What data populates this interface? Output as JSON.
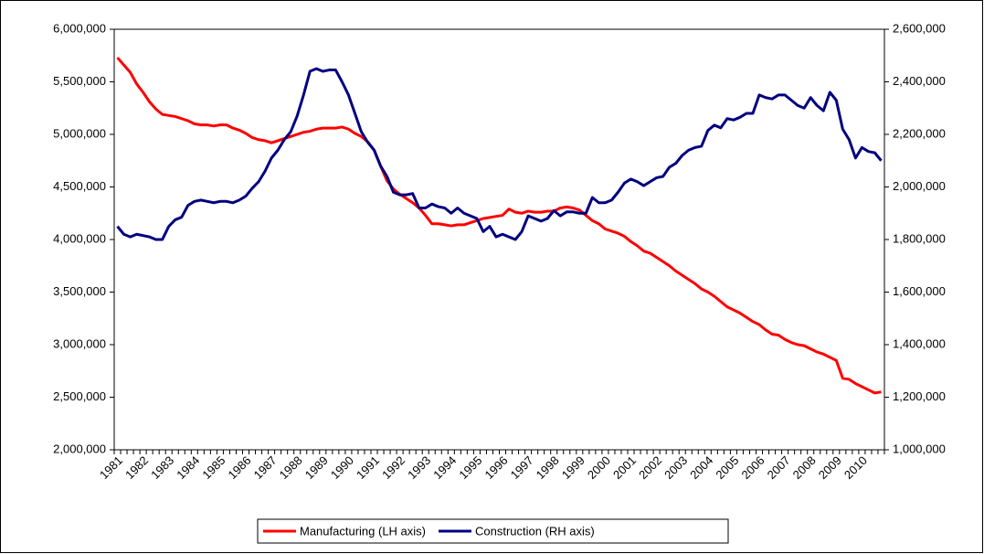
{
  "chart_data": {
    "type": "line",
    "categories": [
      "1981",
      null,
      null,
      null,
      "1982",
      null,
      null,
      null,
      "1983",
      null,
      null,
      null,
      "1984",
      null,
      null,
      null,
      "1985",
      null,
      null,
      null,
      "1986",
      null,
      null,
      null,
      "1987",
      null,
      null,
      null,
      "1988",
      null,
      null,
      null,
      "1989",
      null,
      null,
      null,
      "1990",
      null,
      null,
      null,
      "1991",
      null,
      null,
      null,
      "1992",
      null,
      null,
      null,
      "1993",
      null,
      null,
      null,
      "1994",
      null,
      null,
      null,
      "1995",
      null,
      null,
      null,
      "1996",
      null,
      null,
      null,
      "1997",
      null,
      null,
      null,
      "1998",
      null,
      null,
      null,
      "1999",
      null,
      null,
      null,
      "2000",
      null,
      null,
      null,
      "2001",
      null,
      null,
      null,
      "2002",
      null,
      null,
      null,
      "2003",
      null,
      null,
      null,
      "2004",
      null,
      null,
      null,
      "2005",
      null,
      null,
      null,
      "2006",
      null,
      null,
      null,
      "2007",
      null,
      null,
      null,
      "2008",
      null,
      null,
      null,
      "2009",
      null,
      null,
      null,
      "2010",
      null,
      null,
      null
    ],
    "series": [
      {
        "name": "Manufacturing (LH axis)",
        "color": "#ff0000",
        "values": [
          5730000,
          5660000,
          5590000,
          5480000,
          5400000,
          5310000,
          5240000,
          5190000,
          5180000,
          5170000,
          5150000,
          5130000,
          5100000,
          5090000,
          5090000,
          5080000,
          5090000,
          5090000,
          5060000,
          5040000,
          5010000,
          4970000,
          4950000,
          4940000,
          4920000,
          4940000,
          4960000,
          4980000,
          5000000,
          5020000,
          5030000,
          5050000,
          5060000,
          5060000,
          5060000,
          5070000,
          5050000,
          5010000,
          4980000,
          4930000,
          4850000,
          4700000,
          4560000,
          4480000,
          4430000,
          4390000,
          4350000,
          4300000,
          4230000,
          4150000,
          4150000,
          4140000,
          4130000,
          4140000,
          4140000,
          4160000,
          4180000,
          4200000,
          4210000,
          4220000,
          4230000,
          4290000,
          4260000,
          4250000,
          4270000,
          4260000,
          4260000,
          4270000,
          4270000,
          4300000,
          4310000,
          4300000,
          4280000,
          4230000,
          4180000,
          4150000,
          4100000,
          4080000,
          4060000,
          4030000,
          3980000,
          3940000,
          3890000,
          3870000,
          3830000,
          3790000,
          3750000,
          3700000,
          3660000,
          3620000,
          3580000,
          3530000,
          3500000,
          3460000,
          3410000,
          3360000,
          3330000,
          3300000,
          3260000,
          3220000,
          3190000,
          3140000,
          3100000,
          3090000,
          3050000,
          3020000,
          3000000,
          2990000,
          2960000,
          2930000,
          2910000,
          2880000,
          2850000,
          2680000,
          2670000,
          2630000,
          2600000,
          2570000,
          2540000,
          2550000
        ]
      },
      {
        "name": "Construction (RH axis)",
        "color": "#000080",
        "axis": "y2",
        "values": [
          1850000,
          1820000,
          1810000,
          1820000,
          1815000,
          1810000,
          1800000,
          1800000,
          1850000,
          1875000,
          1885000,
          1930000,
          1945000,
          1950000,
          1945000,
          1940000,
          1945000,
          1945000,
          1940000,
          1950000,
          1965000,
          1995000,
          2020000,
          2060000,
          2110000,
          2140000,
          2180000,
          2210000,
          2270000,
          2350000,
          2440000,
          2450000,
          2440000,
          2445000,
          2445000,
          2400000,
          2350000,
          2280000,
          2210000,
          2170000,
          2140000,
          2080000,
          2040000,
          1980000,
          1970000,
          1970000,
          1975000,
          1920000,
          1920000,
          1935000,
          1925000,
          1920000,
          1900000,
          1920000,
          1900000,
          1890000,
          1880000,
          1830000,
          1850000,
          1810000,
          1820000,
          1810000,
          1800000,
          1830000,
          1890000,
          1880000,
          1870000,
          1880000,
          1910000,
          1890000,
          1905000,
          1905000,
          1900000,
          1900000,
          1960000,
          1940000,
          1940000,
          1950000,
          1980000,
          2015000,
          2030000,
          2020000,
          2005000,
          2020000,
          2035000,
          2040000,
          2075000,
          2090000,
          2120000,
          2140000,
          2150000,
          2155000,
          2215000,
          2235000,
          2225000,
          2260000,
          2255000,
          2265000,
          2280000,
          2280000,
          2350000,
          2340000,
          2335000,
          2350000,
          2350000,
          2330000,
          2310000,
          2300000,
          2340000,
          2310000,
          2290000,
          2360000,
          2330000,
          2220000,
          2180000,
          2110000,
          2150000,
          2135000,
          2130000,
          2100000
        ]
      }
    ],
    "ylim": [
      2000000,
      6000000
    ],
    "yticks": [
      {
        "value": 2000000,
        "label": "2,000,000"
      },
      {
        "value": 2500000,
        "label": "2,500,000"
      },
      {
        "value": 3000000,
        "label": "3,000,000"
      },
      {
        "value": 3500000,
        "label": "3,500,000"
      },
      {
        "value": 4000000,
        "label": "4,000,000"
      },
      {
        "value": 4500000,
        "label": "4,500,000"
      },
      {
        "value": 5000000,
        "label": "5,000,000"
      },
      {
        "value": 5500000,
        "label": "5,500,000"
      },
      {
        "value": 6000000,
        "label": "6,000,000"
      }
    ],
    "y2lim": [
      1000000,
      2600000
    ],
    "y2ticks": [
      {
        "value": 1000000,
        "label": "1,000,000"
      },
      {
        "value": 1200000,
        "label": "1,200,000"
      },
      {
        "value": 1400000,
        "label": "1,400,000"
      },
      {
        "value": 1600000,
        "label": "1,600,000"
      },
      {
        "value": 1800000,
        "label": "1,800,000"
      },
      {
        "value": 2000000,
        "label": "2,000,000"
      },
      {
        "value": 2200000,
        "label": "2,200,000"
      },
      {
        "value": 2400000,
        "label": "2,400,000"
      },
      {
        "value": 2600000,
        "label": "2,600,000"
      }
    ],
    "grid": false,
    "legend": "bottom"
  }
}
